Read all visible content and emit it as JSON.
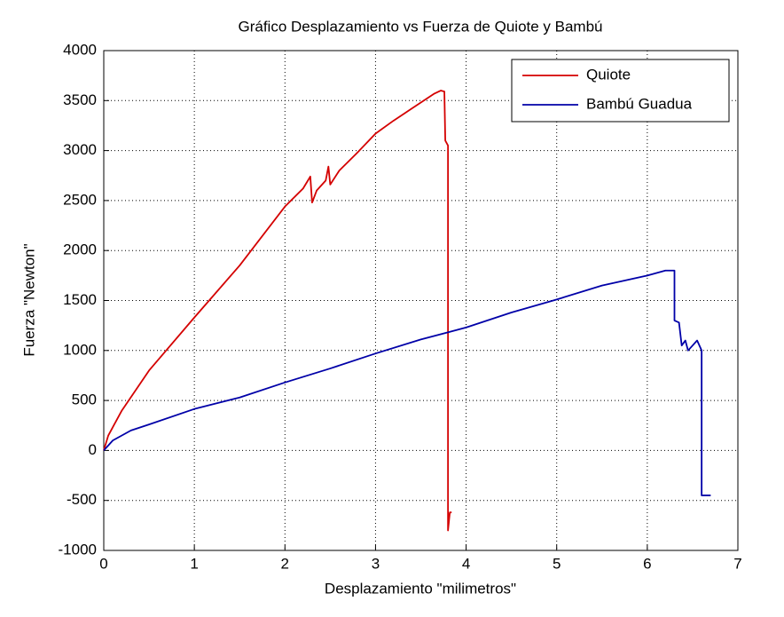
{
  "chart_data": {
    "type": "line",
    "title": "Gráfico Desplazamiento vs Fuerza de Quiote y Bambú",
    "x_label": "Desplazamiento \"milimetros\"",
    "y_label": "Fuerza \"Newton\"",
    "xlim": [
      0,
      7
    ],
    "xticks": [
      0,
      1,
      2,
      3,
      4,
      5,
      6,
      7
    ],
    "ylim": [
      -1000,
      4000
    ],
    "yticks": [
      -1000,
      -500,
      0,
      500,
      1000,
      1500,
      2000,
      2500,
      3000,
      3500,
      4000
    ],
    "grid": true,
    "legend": "northeast",
    "series": [
      {
        "name": "Quiote",
        "color": "#d40000",
        "x": [
          0,
          0.05,
          0.2,
          0.5,
          1,
          1.5,
          2,
          2.2,
          2.28,
          2.3,
          2.35,
          2.45,
          2.48,
          2.5,
          2.6,
          2.8,
          3,
          3.2,
          3.4,
          3.5,
          3.65,
          3.72,
          3.76,
          3.77,
          3.8,
          3.8,
          3.82,
          3.84
        ],
        "values": [
          0,
          150,
          400,
          800,
          1330,
          1850,
          2440,
          2620,
          2740,
          2480,
          2600,
          2700,
          2840,
          2660,
          2800,
          2980,
          3170,
          3300,
          3420,
          3480,
          3570,
          3600,
          3590,
          3100,
          3050,
          -800,
          -620,
          -620
        ]
      },
      {
        "name": "Bambú Guadua",
        "color": "#0000a8",
        "x": [
          0,
          0.1,
          0.3,
          0.5,
          1,
          1.5,
          2,
          2.5,
          3,
          3.5,
          4,
          4.5,
          5,
          5.5,
          6,
          6.2,
          6.3,
          6.3,
          6.35,
          6.38,
          6.42,
          6.45,
          6.5,
          6.55,
          6.6,
          6.6,
          6.7
        ],
        "values": [
          0,
          100,
          200,
          260,
          415,
          530,
          680,
          820,
          970,
          1110,
          1230,
          1380,
          1510,
          1650,
          1750,
          1800,
          1800,
          1300,
          1280,
          1050,
          1100,
          1000,
          1050,
          1100,
          1000,
          -450,
          -450
        ]
      }
    ]
  }
}
